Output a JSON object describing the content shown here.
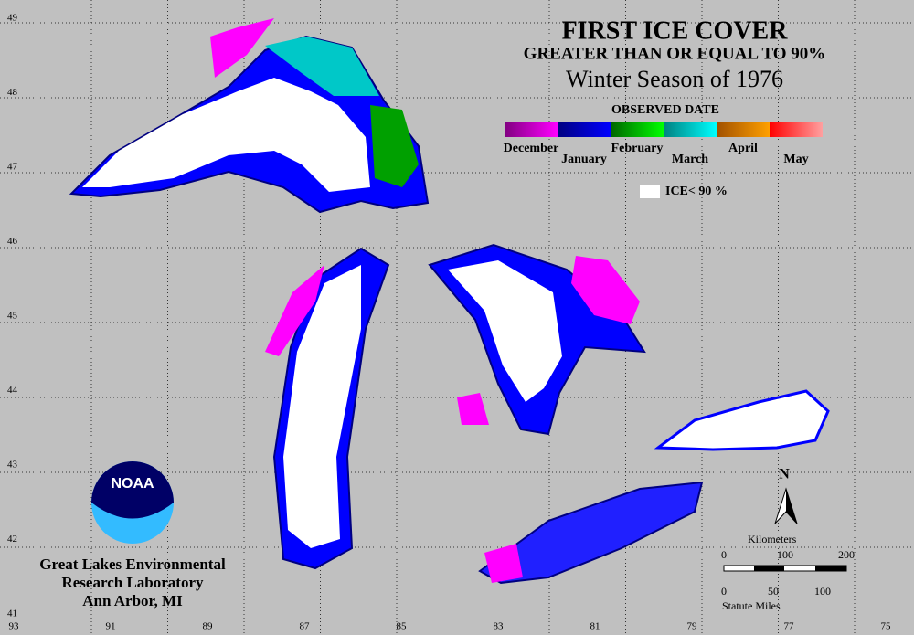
{
  "title": "FIRST ICE COVER",
  "subtitle": "GREATER THAN OR EQUAL TO 90%",
  "season": "Winter Season of 1976",
  "legend": {
    "title": "OBSERVED DATE",
    "months": [
      "December",
      "January",
      "February",
      "March",
      "April",
      "May"
    ],
    "colors": [
      [
        "#800080",
        "#ff00ff"
      ],
      [
        "#000080",
        "#0000ff"
      ],
      [
        "#006400",
        "#00ff00"
      ],
      [
        "#008080",
        "#00ffff"
      ],
      [
        "#a05000",
        "#ffa000"
      ],
      [
        "#ff0000",
        "#ffa0a0"
      ]
    ],
    "ice_label": "ICE< 90 %"
  },
  "latitude_labels": [
    "49",
    "48",
    "47",
    "46",
    "45",
    "44",
    "43",
    "42",
    "41"
  ],
  "longitude_labels": [
    "93",
    "91",
    "89",
    "87",
    "85",
    "83",
    "81",
    "79",
    "77",
    "75"
  ],
  "scale": {
    "km_title": "Kilometers",
    "km_ticks": [
      "0",
      "100",
      "200"
    ],
    "mile_ticks": [
      "0",
      "50",
      "100"
    ],
    "mile_title": "Statute Miles"
  },
  "north": "N",
  "logo": "NOAA",
  "credit": [
    "Great Lakes Environmental",
    "Research Laboratory",
    "Ann Arbor, MI"
  ]
}
